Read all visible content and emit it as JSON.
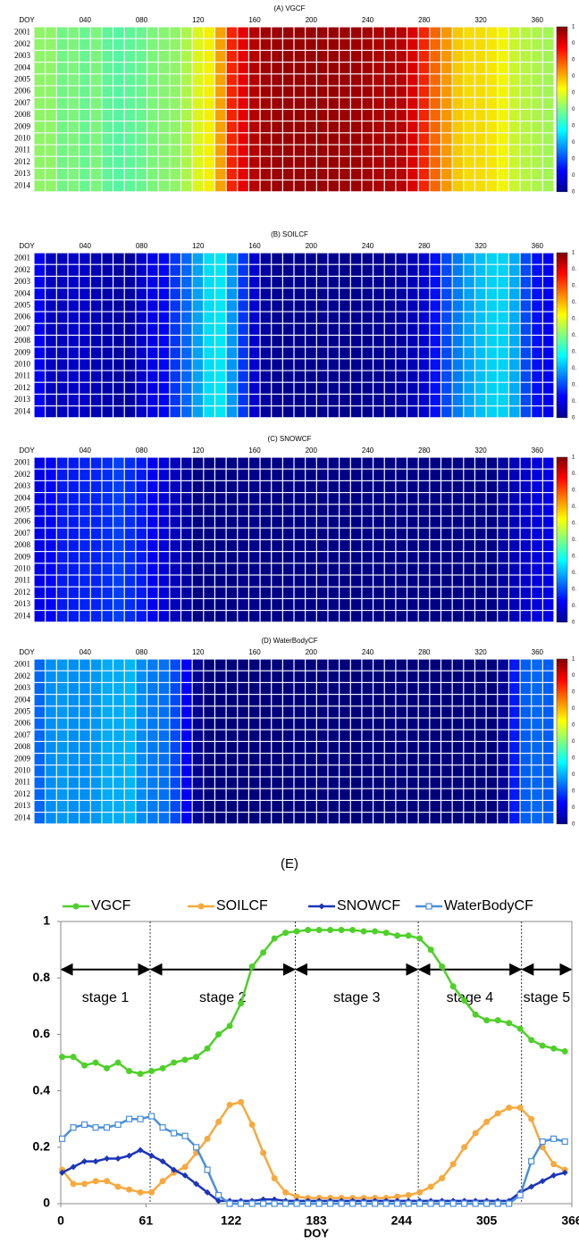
{
  "chart_data": [
    {
      "type": "heatmap",
      "title": "(A)  VGCF",
      "x_label": "DOY",
      "x_tick_labels": [
        "040",
        "080",
        "120",
        "160",
        "200",
        "240",
        "280",
        "320",
        "360"
      ],
      "categories": [
        "2001",
        "2002",
        "2003",
        "2004",
        "2005",
        "2006",
        "2007",
        "2008",
        "2009",
        "2010",
        "2011",
        "2012",
        "2013",
        "2014"
      ],
      "colorbar_labels": [
        "1",
        "0",
        "0",
        "0",
        "0",
        "0",
        "0",
        "0",
        "0",
        "0",
        "0"
      ]
    },
    {
      "type": "heatmap",
      "title": "(B)  SOILCF",
      "x_label": "DOY",
      "x_tick_labels": [
        "040",
        "080",
        "120",
        "160",
        "200",
        "240",
        "280",
        "320",
        "360"
      ],
      "categories": [
        "2001",
        "2002",
        "2003",
        "2004",
        "2005",
        "2006",
        "2007",
        "2008",
        "2009",
        "2010",
        "2011",
        "2012",
        "2013",
        "2014"
      ],
      "colorbar_labels": [
        "1",
        "0.",
        "0.",
        "0.",
        "0.",
        "0.",
        "0.",
        "0.",
        "0.",
        "0.",
        "0"
      ]
    },
    {
      "type": "heatmap",
      "title": "(C)  SNOWCF",
      "x_label": "DOY",
      "x_tick_labels": [
        "040",
        "080",
        "120",
        "160",
        "200",
        "240",
        "280",
        "320",
        "360"
      ],
      "categories": [
        "2001",
        "2002",
        "2003",
        "2004",
        "2005",
        "2006",
        "2007",
        "2008",
        "2009",
        "2010",
        "2011",
        "2012",
        "2013",
        "2014"
      ],
      "colorbar_labels": [
        "1",
        "0.",
        "0.",
        "0.",
        "0.",
        "0.",
        "0.",
        "0.",
        "0.",
        "0.",
        "0"
      ]
    },
    {
      "type": "heatmap",
      "title": "(D)  WaterBodyCF",
      "x_label": "DOY",
      "x_tick_labels": [
        "040",
        "080",
        "120",
        "160",
        "200",
        "240",
        "280",
        "320",
        "360"
      ],
      "categories": [
        "2001",
        "2002",
        "2003",
        "2004",
        "2005",
        "2006",
        "2007",
        "2008",
        "2009",
        "2010",
        "2011",
        "2012",
        "2013",
        "2014"
      ],
      "colorbar_labels": [
        "1",
        "0",
        "0",
        "0",
        "0",
        "0",
        "0",
        "0",
        "0",
        "0",
        "0"
      ]
    },
    {
      "type": "line",
      "title": "(E)",
      "x_label": "DOY",
      "xlim": [
        0,
        366
      ],
      "xticks": [
        0,
        61,
        122,
        183,
        244,
        305,
        366
      ],
      "ylim": [
        0,
        1
      ],
      "yticks": [
        0,
        0.2,
        0.4,
        0.6,
        0.8,
        1
      ],
      "stage_bounds": [
        64,
        168,
        256,
        330
      ],
      "stage_labels": [
        "stage 1",
        "stage 2",
        "stage 3",
        "stage 4",
        "stage 5"
      ],
      "stage_arrow_y": 0.83,
      "x": [
        1,
        9,
        17,
        25,
        33,
        41,
        49,
        57,
        65,
        73,
        81,
        89,
        97,
        105,
        113,
        121,
        129,
        137,
        145,
        153,
        161,
        169,
        177,
        185,
        193,
        201,
        209,
        217,
        225,
        233,
        241,
        249,
        257,
        265,
        273,
        281,
        289,
        297,
        305,
        313,
        321,
        329,
        337,
        345,
        353,
        361
      ],
      "series": [
        {
          "name": "VGCF",
          "color": "#4fcf2a",
          "marker": "circle",
          "values": [
            0.52,
            0.52,
            0.49,
            0.5,
            0.48,
            0.5,
            0.47,
            0.46,
            0.47,
            0.48,
            0.5,
            0.51,
            0.52,
            0.55,
            0.6,
            0.63,
            0.71,
            0.84,
            0.89,
            0.94,
            0.96,
            0.965,
            0.97,
            0.97,
            0.97,
            0.97,
            0.97,
            0.965,
            0.965,
            0.96,
            0.95,
            0.95,
            0.94,
            0.9,
            0.84,
            0.77,
            0.72,
            0.67,
            0.65,
            0.65,
            0.64,
            0.62,
            0.58,
            0.56,
            0.55,
            0.54
          ]
        },
        {
          "name": "SOILCF",
          "color": "#f7a93f",
          "marker": "circle",
          "values": [
            0.12,
            0.07,
            0.07,
            0.08,
            0.08,
            0.06,
            0.05,
            0.04,
            0.04,
            0.08,
            0.11,
            0.13,
            0.18,
            0.23,
            0.29,
            0.35,
            0.36,
            0.28,
            0.18,
            0.09,
            0.04,
            0.025,
            0.02,
            0.02,
            0.02,
            0.02,
            0.02,
            0.02,
            0.02,
            0.02,
            0.025,
            0.03,
            0.04,
            0.06,
            0.09,
            0.14,
            0.2,
            0.25,
            0.29,
            0.32,
            0.34,
            0.34,
            0.3,
            0.2,
            0.14,
            0.12
          ]
        },
        {
          "name": "SNOWCF",
          "color": "#1c35b8",
          "marker": "diamond",
          "values": [
            0.11,
            0.13,
            0.15,
            0.15,
            0.16,
            0.16,
            0.17,
            0.19,
            0.17,
            0.15,
            0.12,
            0.1,
            0.07,
            0.04,
            0.01,
            0.01,
            0.01,
            0.01,
            0.015,
            0.015,
            0.01,
            0.01,
            0.01,
            0.01,
            0.01,
            0.01,
            0.01,
            0.01,
            0.01,
            0.01,
            0.01,
            0.01,
            0.01,
            0.01,
            0.01,
            0.01,
            0.01,
            0.01,
            0.01,
            0.01,
            0.01,
            0.04,
            0.06,
            0.08,
            0.1,
            0.11
          ]
        },
        {
          "name": "WaterBodyCF",
          "color": "#4b8fd8",
          "marker": "square",
          "values": [
            0.23,
            0.27,
            0.28,
            0.27,
            0.27,
            0.28,
            0.3,
            0.3,
            0.31,
            0.27,
            0.25,
            0.24,
            0.2,
            0.12,
            0.03,
            0,
            0,
            0,
            0,
            0,
            0,
            0,
            0,
            0,
            0,
            0,
            0,
            0,
            0,
            0,
            0,
            0,
            0,
            0,
            0,
            0,
            0,
            0,
            0,
            0,
            0,
            0.03,
            0.15,
            0.22,
            0.23,
            0.22
          ]
        }
      ]
    }
  ]
}
